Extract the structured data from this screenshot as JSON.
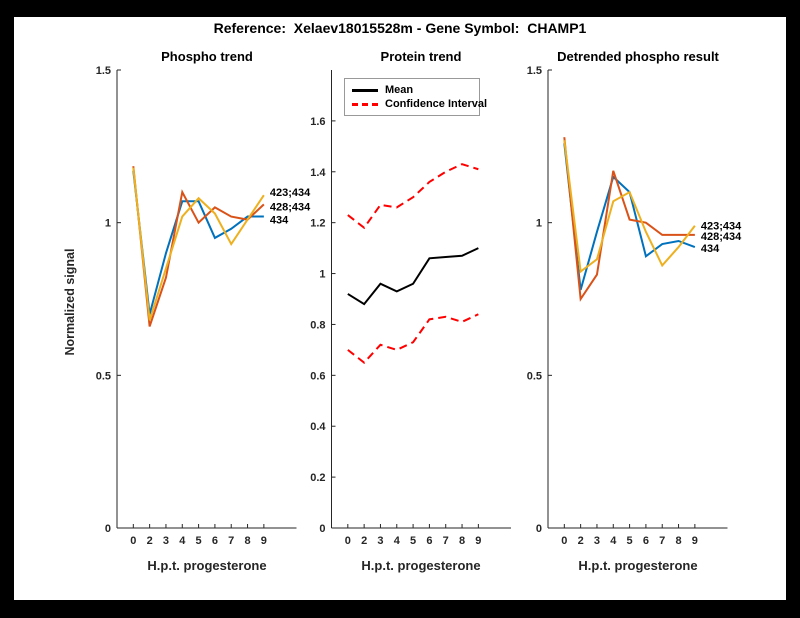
{
  "figure": {
    "title": "Reference:  Xelaev18015528m - Gene Symbol:  CHAMP1",
    "background_color": "#000000",
    "canvas_color": "#ffffff",
    "axis_color": "#262626"
  },
  "chart_data": [
    {
      "type": "line",
      "title": "Phospho trend",
      "xlabel": "H.p.t. progesterone",
      "ylabel": "Normalized signal",
      "x_tick_labels": [
        "0",
        "2",
        "3",
        "4",
        "5",
        "6",
        "7",
        "8",
        "9"
      ],
      "xlim": [
        0,
        11
      ],
      "ylim": [
        0,
        1.5
      ],
      "ytick_values": [
        0,
        0.5,
        1,
        1.5
      ],
      "ytick_labels": [
        "0",
        "0.5",
        "1",
        "1.5"
      ],
      "grid": false,
      "series": [
        {
          "name": "423;434",
          "color": "#EDB120",
          "dash": false,
          "end_label": true,
          "end_label_dy": -3,
          "values": [
            1.18,
            0.68,
            0.85,
            1.02,
            1.08,
            1.03,
            0.93,
            1.01,
            1.09
          ]
        },
        {
          "name": "428;434",
          "color": "#D95319",
          "dash": false,
          "end_label": true,
          "end_label_dy": 2,
          "values": [
            1.185,
            0.66,
            0.82,
            1.1,
            1.0,
            1.05,
            1.02,
            1.01,
            1.06
          ]
        },
        {
          "name": "434",
          "color": "#0072BD",
          "dash": false,
          "end_label": true,
          "end_label_dy": 3,
          "values": [
            1.17,
            0.7,
            0.9,
            1.07,
            1.07,
            0.95,
            0.98,
            1.02,
            1.02
          ]
        }
      ]
    },
    {
      "type": "line",
      "title": "Protein trend",
      "xlabel": "H.p.t. progesterone",
      "ylabel": "",
      "x_tick_labels": [
        "0",
        "2",
        "3",
        "4",
        "5",
        "6",
        "7",
        "8",
        "9"
      ],
      "xlim": [
        0,
        11
      ],
      "ylim": [
        0,
        1.8
      ],
      "ytick_values": [
        0,
        0.2,
        0.4,
        0.6,
        0.8,
        1,
        1.2,
        1.4,
        1.6
      ],
      "ytick_labels": [
        "0",
        "0.2",
        "0.4",
        "0.6",
        "0.8",
        "1",
        "1.2",
        "1.4",
        "1.6"
      ],
      "grid": false,
      "legend": {
        "position": "northwest",
        "entries": [
          {
            "label": "Mean",
            "color": "#000000",
            "dash": false
          },
          {
            "label": "Confidence Interval",
            "color": "#FF0000",
            "dash": true
          }
        ]
      },
      "series": [
        {
          "name": "Mean",
          "color": "#000000",
          "dash": false,
          "end_label": false,
          "end_label_dy": 0,
          "values": [
            0.92,
            0.88,
            0.96,
            0.93,
            0.96,
            1.06,
            1.065,
            1.07,
            1.1
          ]
        },
        {
          "name": "Confidence Interval upper",
          "color": "#FF0000",
          "dash": true,
          "end_label": false,
          "end_label_dy": 0,
          "values": [
            1.23,
            1.18,
            1.27,
            1.26,
            1.3,
            1.36,
            1.4,
            1.43,
            1.41
          ]
        },
        {
          "name": "Confidence Interval lower",
          "color": "#FF0000",
          "dash": true,
          "end_label": false,
          "end_label_dy": 0,
          "values": [
            0.7,
            0.65,
            0.72,
            0.7,
            0.73,
            0.82,
            0.83,
            0.81,
            0.84
          ]
        }
      ]
    },
    {
      "type": "line",
      "title": "Detrended phospho result",
      "xlabel": "H.p.t. progesterone",
      "ylabel": "",
      "x_tick_labels": [
        "0",
        "2",
        "3",
        "4",
        "5",
        "6",
        "7",
        "8",
        "9"
      ],
      "xlim": [
        0,
        11
      ],
      "ylim": [
        0,
        1.5
      ],
      "ytick_values": [
        0,
        0.5,
        1,
        1.5
      ],
      "ytick_labels": [
        "0",
        "0.5",
        "1",
        "1.5"
      ],
      "grid": false,
      "series": [
        {
          "name": "423;434",
          "color": "#EDB120",
          "dash": false,
          "end_label": true,
          "end_label_dy": 0,
          "values": [
            1.27,
            0.84,
            0.88,
            1.07,
            1.1,
            0.97,
            0.86,
            0.92,
            0.99
          ]
        },
        {
          "name": "428;434",
          "color": "#D95319",
          "dash": false,
          "end_label": true,
          "end_label_dy": 1,
          "values": [
            1.28,
            0.75,
            0.83,
            1.17,
            1.01,
            1.0,
            0.96,
            0.96,
            0.96
          ]
        },
        {
          "name": "434",
          "color": "#0072BD",
          "dash": false,
          "end_label": true,
          "end_label_dy": 1,
          "values": [
            1.26,
            0.78,
            0.97,
            1.15,
            1.1,
            0.89,
            0.93,
            0.94,
            0.92
          ]
        }
      ]
    }
  ]
}
